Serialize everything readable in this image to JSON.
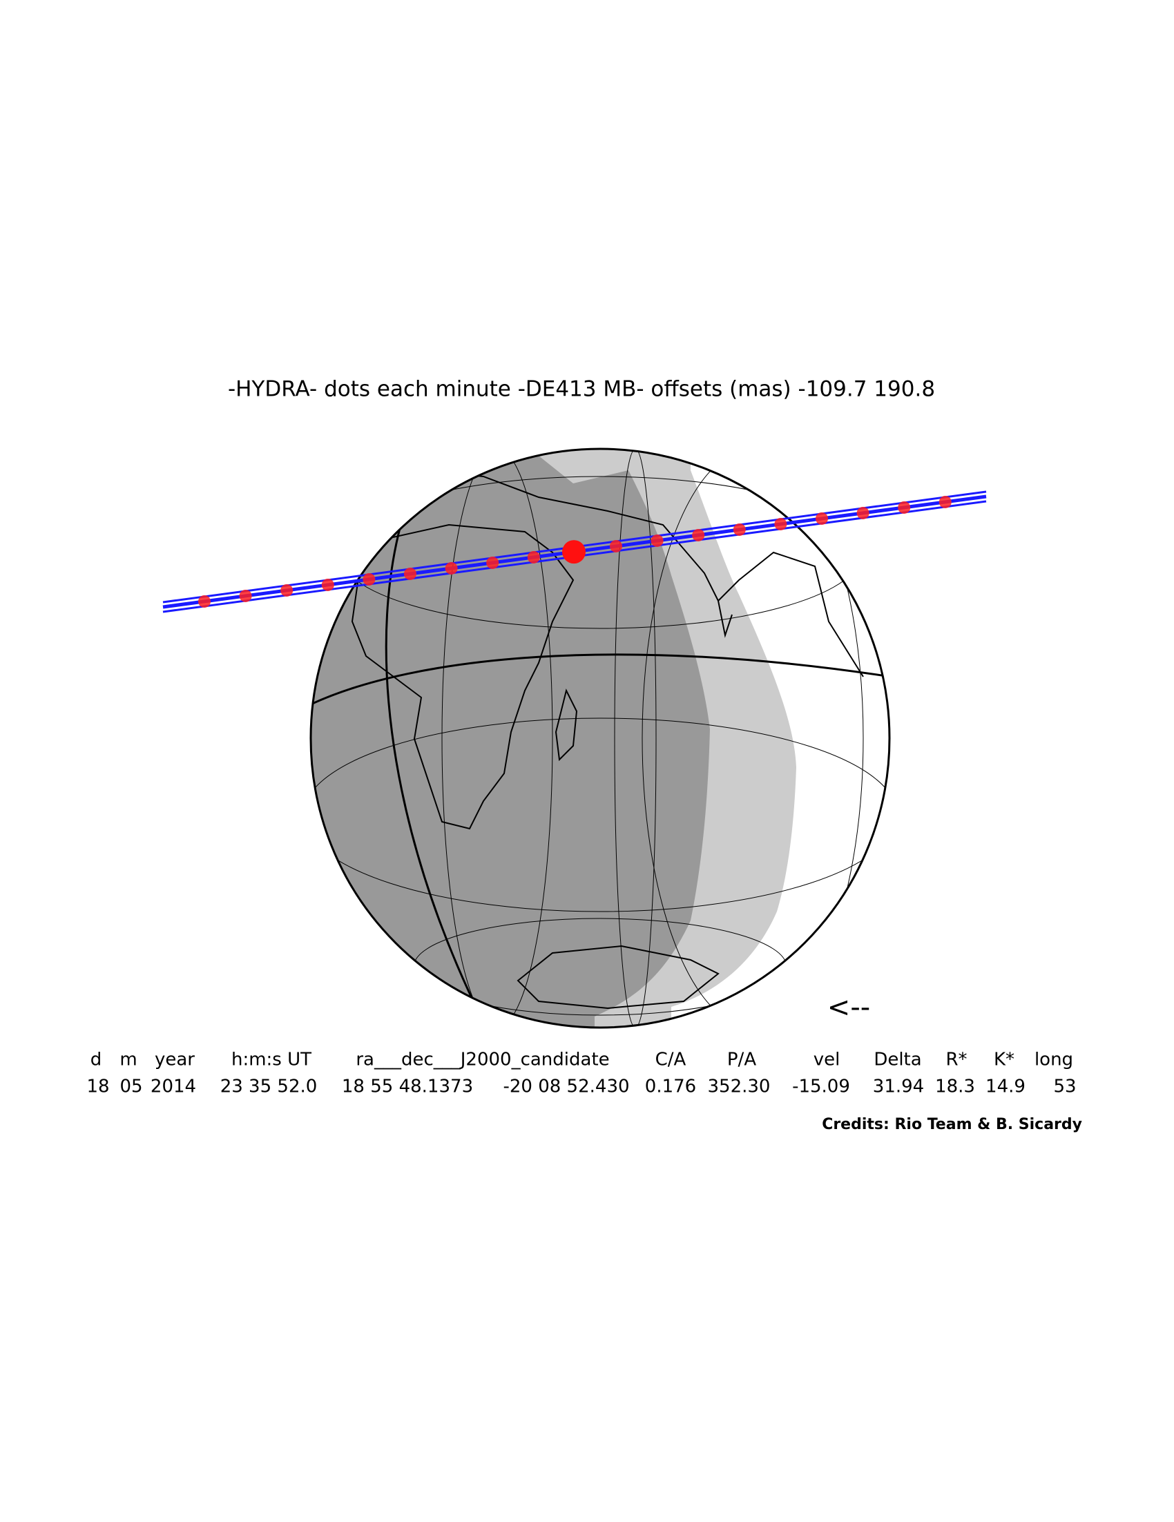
{
  "title": "-HYDRA-  dots each minute  -DE413 MB-  offsets (mas)  -109.7   190.8",
  "direction": "<--",
  "table": {
    "headers": [
      "d",
      "m",
      "year",
      "h:m:s UT",
      "ra___dec___J2000_candidate",
      "C/A",
      "P/A",
      "vel",
      "Delta",
      "R*",
      "K*",
      "long"
    ],
    "values": [
      "18",
      "05",
      "2014",
      "23 35 52.0",
      "18 55 48.1373",
      "-20 08 52.430",
      "0.176",
      "352.30",
      "-15.09",
      "31.94",
      "18.3",
      "14.9",
      "53"
    ]
  },
  "credits": "Credits: Rio Team & B. Sicardy"
}
